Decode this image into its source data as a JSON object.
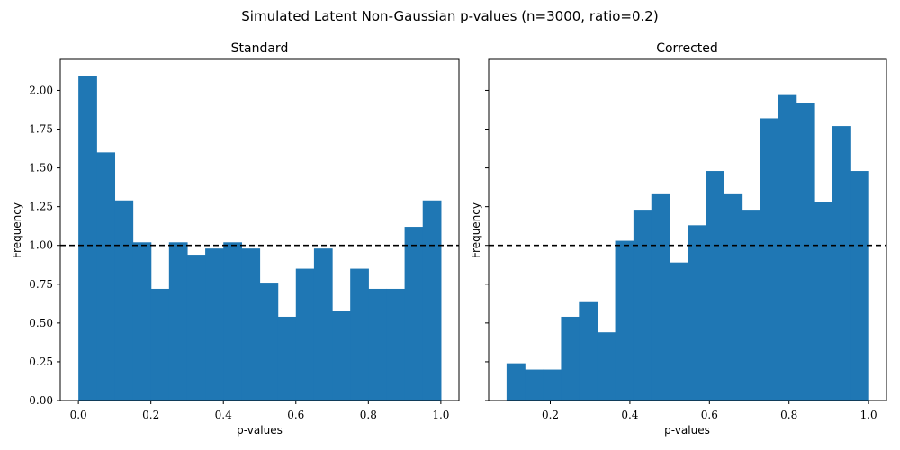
{
  "figure": {
    "title": "Simulated Latent Non-Gaussian p-values (n=3000, ratio=0.2)"
  },
  "chart_data": [
    {
      "type": "bar",
      "title": "Standard",
      "xlabel": "p-values",
      "ylabel": "Frequency",
      "xlim": [
        -0.05,
        1.05
      ],
      "ylim": [
        0,
        2.2
      ],
      "xticks": [
        "0.0",
        "0.2",
        "0.4",
        "0.6",
        "0.8",
        "1.0"
      ],
      "yticks": [
        "0.00",
        "0.25",
        "0.50",
        "0.75",
        "1.00",
        "1.25",
        "1.50",
        "1.75",
        "2.00"
      ],
      "show_yticklabels": true,
      "bar_color": "#1f77b4",
      "reference_line": {
        "y": 1.0,
        "style": "dashed",
        "color": "#000000"
      },
      "bins": [
        {
          "x0": 0.0,
          "x1": 0.05,
          "value": 2.09
        },
        {
          "x0": 0.05,
          "x1": 0.1,
          "value": 1.6
        },
        {
          "x0": 0.1,
          "x1": 0.15,
          "value": 1.29
        },
        {
          "x0": 0.15,
          "x1": 0.2,
          "value": 1.02
        },
        {
          "x0": 0.2,
          "x1": 0.25,
          "value": 0.72
        },
        {
          "x0": 0.25,
          "x1": 0.3,
          "value": 1.02
        },
        {
          "x0": 0.3,
          "x1": 0.35,
          "value": 0.94
        },
        {
          "x0": 0.35,
          "x1": 0.4,
          "value": 0.98
        },
        {
          "x0": 0.4,
          "x1": 0.45,
          "value": 1.02
        },
        {
          "x0": 0.45,
          "x1": 0.5,
          "value": 0.98
        },
        {
          "x0": 0.5,
          "x1": 0.55,
          "value": 0.76
        },
        {
          "x0": 0.55,
          "x1": 0.6,
          "value": 0.54
        },
        {
          "x0": 0.6,
          "x1": 0.65,
          "value": 0.85
        },
        {
          "x0": 0.65,
          "x1": 0.7,
          "value": 0.98
        },
        {
          "x0": 0.7,
          "x1": 0.75,
          "value": 0.58
        },
        {
          "x0": 0.75,
          "x1": 0.8,
          "value": 0.85
        },
        {
          "x0": 0.8,
          "x1": 0.85,
          "value": 0.72
        },
        {
          "x0": 0.85,
          "x1": 0.9,
          "value": 0.72
        },
        {
          "x0": 0.9,
          "x1": 0.95,
          "value": 1.12
        },
        {
          "x0": 0.95,
          "x1": 1.0,
          "value": 1.29
        }
      ]
    },
    {
      "type": "bar",
      "title": "Corrected",
      "xlabel": "p-values",
      "ylabel": "Frequency",
      "xlim": [
        0.045,
        1.045
      ],
      "ylim": [
        0,
        2.2
      ],
      "xticks": [
        "0.2",
        "0.4",
        "0.6",
        "0.8",
        "1.0"
      ],
      "yticks": [
        "0.00",
        "0.25",
        "0.50",
        "0.75",
        "1.00",
        "1.25",
        "1.50",
        "1.75",
        "2.00"
      ],
      "show_yticklabels": false,
      "bar_color": "#1f77b4",
      "reference_line": {
        "y": 1.0,
        "style": "dashed",
        "color": "#000000"
      },
      "bins": [
        {
          "x0": 0.09,
          "x1": 0.136,
          "value": 0.24
        },
        {
          "x0": 0.136,
          "x1": 0.181,
          "value": 0.2
        },
        {
          "x0": 0.181,
          "x1": 0.227,
          "value": 0.2
        },
        {
          "x0": 0.227,
          "x1": 0.272,
          "value": 0.54
        },
        {
          "x0": 0.272,
          "x1": 0.318,
          "value": 0.64
        },
        {
          "x0": 0.318,
          "x1": 0.363,
          "value": 0.44
        },
        {
          "x0": 0.363,
          "x1": 0.409,
          "value": 1.03
        },
        {
          "x0": 0.409,
          "x1": 0.454,
          "value": 1.23
        },
        {
          "x0": 0.454,
          "x1": 0.5,
          "value": 1.33
        },
        {
          "x0": 0.5,
          "x1": 0.545,
          "value": 0.89
        },
        {
          "x0": 0.545,
          "x1": 0.591,
          "value": 1.13
        },
        {
          "x0": 0.591,
          "x1": 0.636,
          "value": 1.48
        },
        {
          "x0": 0.636,
          "x1": 0.682,
          "value": 1.33
        },
        {
          "x0": 0.682,
          "x1": 0.727,
          "value": 1.23
        },
        {
          "x0": 0.727,
          "x1": 0.773,
          "value": 1.82
        },
        {
          "x0": 0.773,
          "x1": 0.818,
          "value": 1.97
        },
        {
          "x0": 0.818,
          "x1": 0.864,
          "value": 1.92
        },
        {
          "x0": 0.864,
          "x1": 0.909,
          "value": 1.28
        },
        {
          "x0": 0.909,
          "x1": 0.955,
          "value": 1.77
        },
        {
          "x0": 0.955,
          "x1": 1.0,
          "value": 1.48
        }
      ]
    }
  ]
}
